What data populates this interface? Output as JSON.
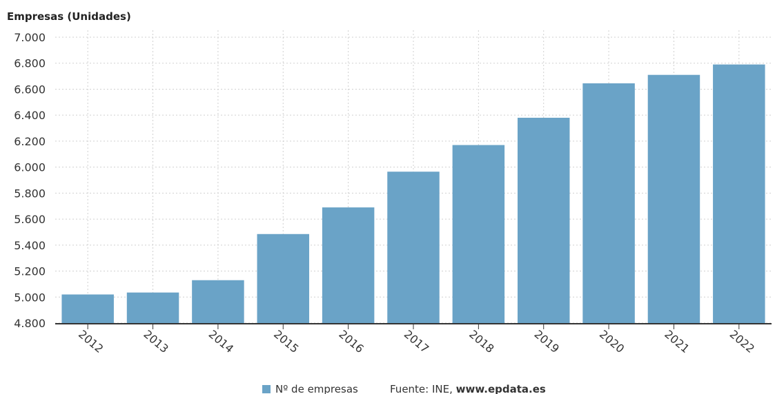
{
  "chart_data": {
    "type": "bar",
    "ylabel": "Empresas (Unidades)",
    "categories": [
      "2012",
      "2013",
      "2014",
      "2015",
      "2016",
      "2017",
      "2018",
      "2019",
      "2020",
      "2021",
      "2022"
    ],
    "series": [
      {
        "name": "Nº de empresas",
        "color": "#6aa3c7",
        "values": [
          5020,
          5035,
          5130,
          5485,
          5690,
          5965,
          6170,
          6380,
          6645,
          6710,
          6790
        ]
      }
    ],
    "ylim": [
      4800,
      7000
    ],
    "yticks": [
      4800,
      5000,
      5200,
      5400,
      5600,
      5800,
      6000,
      6200,
      6400,
      6600,
      6800,
      7000
    ],
    "ytick_labels": [
      "4.800",
      "5.000",
      "5.200",
      "5.400",
      "5.600",
      "5.800",
      "6.000",
      "6.200",
      "6.400",
      "6.600",
      "6.800",
      "7.000"
    ],
    "grid": true,
    "legend_placement": "bottom-center"
  },
  "source": {
    "prefix": "Fuente: INE, ",
    "site": "www.epdata.es"
  }
}
